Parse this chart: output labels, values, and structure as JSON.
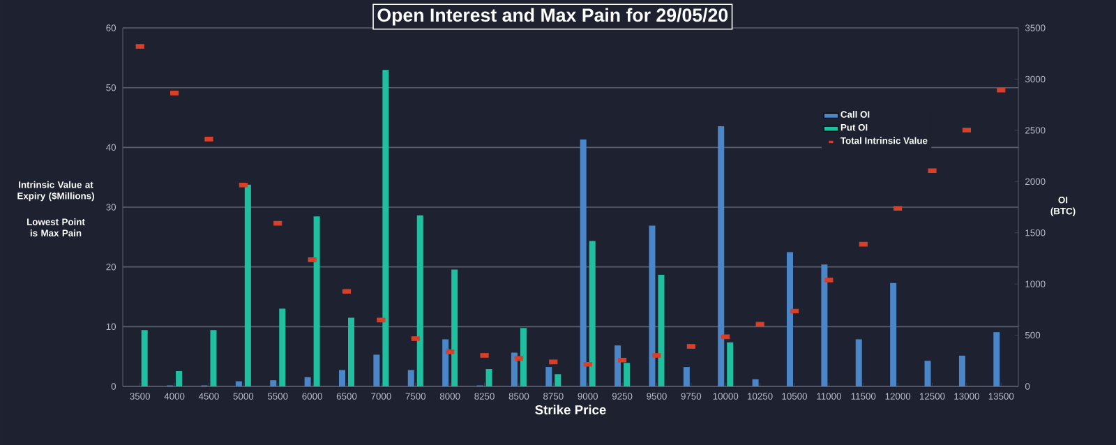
{
  "chart_data": {
    "type": "bar",
    "title": "Open Interest and Max Pain for 29/05/20",
    "xlabel": "Strike Price",
    "ylabel": "Intrinsic Value at Expiry ($Millions)",
    "y2label": "OI (BTC)",
    "annotations": [
      "Lowest Point is Max Pain"
    ],
    "categories": [
      "3500",
      "4000",
      "4500",
      "5000",
      "5500",
      "6000",
      "6500",
      "7000",
      "7500",
      "8000",
      "8250",
      "8500",
      "8750",
      "9000",
      "9250",
      "9500",
      "9750",
      "10000",
      "10250",
      "10500",
      "11000",
      "11500",
      "12000",
      "12500",
      "13000",
      "13500"
    ],
    "series": [
      {
        "name": "Call OI",
        "axis": "y2",
        "color": "#4a86c8",
        "values": [
          0,
          10,
          10,
          50,
          60,
          90,
          160,
          310,
          160,
          460,
          10,
          330,
          190,
          2410,
          400,
          1570,
          190,
          2540,
          70,
          1310,
          1190,
          460,
          1010,
          250,
          300,
          530
        ]
      },
      {
        "name": "Put OI",
        "axis": "y2",
        "color": "#1fbfa0",
        "values": [
          550,
          150,
          550,
          1970,
          760,
          1660,
          670,
          3090,
          1670,
          1140,
          170,
          570,
          120,
          1420,
          230,
          1090,
          0,
          430,
          0,
          0,
          0,
          0,
          0,
          0,
          0,
          0
        ]
      },
      {
        "name": "Total Intrinsic Value",
        "type": "scatter",
        "axis": "y",
        "color": "#d8402a",
        "marker": "square",
        "values": [
          56.9,
          49.1,
          41.4,
          33.7,
          27.3,
          21.2,
          15.9,
          11.1,
          8.0,
          5.8,
          5.2,
          4.7,
          4.1,
          3.7,
          4.4,
          5.2,
          6.7,
          8.3,
          10.4,
          12.6,
          17.8,
          23.8,
          29.8,
          36.1,
          42.9,
          49.6
        ]
      }
    ],
    "ylim": [
      0,
      60
    ],
    "yticks": [
      0,
      10,
      20,
      30,
      40,
      50,
      60
    ],
    "y2lim": [
      0,
      3500
    ],
    "y2ticks": [
      0,
      500,
      1000,
      1500,
      2000,
      2500,
      3000,
      3500
    ],
    "grid": "y",
    "legend": "top right"
  }
}
